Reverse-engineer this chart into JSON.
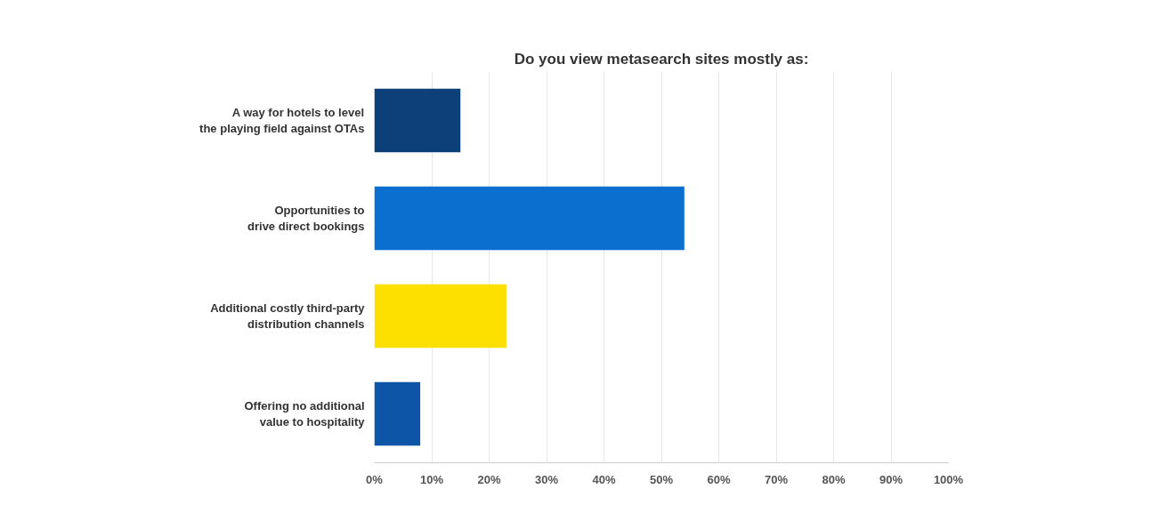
{
  "chart_data": {
    "type": "bar",
    "orientation": "horizontal",
    "title": "Do you view metasearch sites mostly as:",
    "categories": [
      "A way for hotels to level\nthe playing field against OTAs",
      "Opportunities to\ndrive direct bookings",
      "Additional costly third-party\ndistribution channels",
      "Offering no additional\nvalue to hospitality"
    ],
    "values": [
      15,
      54,
      23,
      8
    ],
    "colors": [
      "#0d4079",
      "#0a6fce",
      "#fde000",
      "#0d55a6"
    ],
    "xlim": [
      0,
      100
    ],
    "xticks": [
      {
        "value": 0,
        "label": "0%"
      },
      {
        "value": 10,
        "label": "10%"
      },
      {
        "value": 20,
        "label": "20%"
      },
      {
        "value": 30,
        "label": "30%"
      },
      {
        "value": 40,
        "label": "40%"
      },
      {
        "value": 50,
        "label": "50%"
      },
      {
        "value": 60,
        "label": "60%"
      },
      {
        "value": 70,
        "label": "70%"
      },
      {
        "value": 80,
        "label": "80%"
      },
      {
        "value": 90,
        "label": "90%"
      },
      {
        "value": 100,
        "label": "100%"
      }
    ],
    "grid": "x"
  }
}
